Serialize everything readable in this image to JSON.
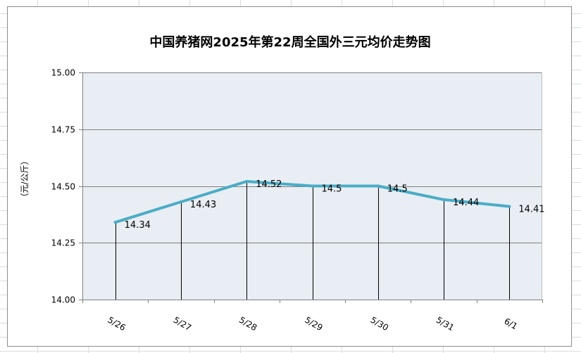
{
  "chart_data": {
    "type": "line",
    "title": "中国养猪网2025年第22周全国外三元均价走势图",
    "ylabel": "（元/公斤）",
    "xlabel": "",
    "categories": [
      "5/26",
      "5/27",
      "5/28",
      "5/29",
      "5/30",
      "5/31",
      "6/1"
    ],
    "values": [
      14.34,
      14.43,
      14.52,
      14.5,
      14.5,
      14.44,
      14.41
    ],
    "data_labels": [
      "14.34",
      "14.43",
      "14.52",
      "14.5",
      "14.5",
      "14.44",
      "14.41"
    ],
    "ylim": [
      14.0,
      15.0
    ],
    "yticks": [
      "14.00",
      "14.25",
      "14.50",
      "14.75",
      "15.00"
    ],
    "grid": true,
    "drop_lines": true,
    "legend": "none",
    "colors": {
      "line": "#4bacc6",
      "plot_bg": "#e8eef3",
      "grid": "#808080",
      "drop_line": "#000000"
    }
  }
}
